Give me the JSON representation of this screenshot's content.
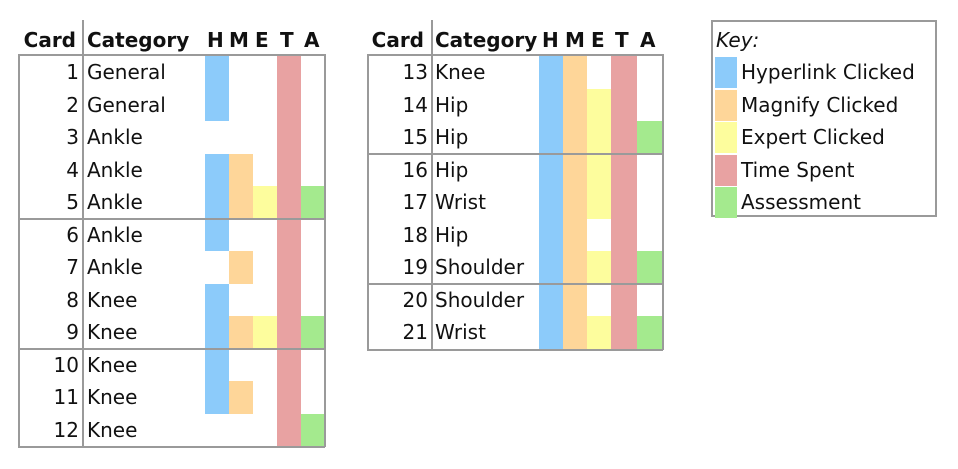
{
  "headers": {
    "card": "Card",
    "category": "Category",
    "h": "H",
    "m": "M",
    "e": "E",
    "t": "T",
    "a": "A"
  },
  "colors": {
    "hyperlink": "#8ccbfa",
    "magnify": "#fed699",
    "expert": "#fdfd9d",
    "time": "#e8a2a2",
    "assessment": "#a4ea8e"
  },
  "tables": [
    {
      "groups": [
        [
          {
            "card": "1",
            "category": "General",
            "h": 1,
            "m": 0,
            "e": 0,
            "t": 1,
            "a": 0
          },
          {
            "card": "2",
            "category": "General",
            "h": 1,
            "m": 0,
            "e": 0,
            "t": 1,
            "a": 0
          },
          {
            "card": "3",
            "category": "Ankle",
            "h": 0,
            "m": 0,
            "e": 0,
            "t": 1,
            "a": 0
          },
          {
            "card": "4",
            "category": "Ankle",
            "h": 1,
            "m": 1,
            "e": 0,
            "t": 1,
            "a": 0
          },
          {
            "card": "5",
            "category": "Ankle",
            "h": 1,
            "m": 1,
            "e": 1,
            "t": 1,
            "a": 1
          }
        ],
        [
          {
            "card": "6",
            "category": "Ankle",
            "h": 1,
            "m": 0,
            "e": 0,
            "t": 1,
            "a": 0
          },
          {
            "card": "7",
            "category": "Ankle",
            "h": 0,
            "m": 1,
            "e": 0,
            "t": 1,
            "a": 0
          },
          {
            "card": "8",
            "category": "Knee",
            "h": 1,
            "m": 0,
            "e": 0,
            "t": 1,
            "a": 0
          },
          {
            "card": "9",
            "category": "Knee",
            "h": 1,
            "m": 1,
            "e": 1,
            "t": 1,
            "a": 1
          }
        ],
        [
          {
            "card": "10",
            "category": "Knee",
            "h": 1,
            "m": 0,
            "e": 0,
            "t": 1,
            "a": 0
          },
          {
            "card": "11",
            "category": "Knee",
            "h": 1,
            "m": 1,
            "e": 0,
            "t": 1,
            "a": 0
          },
          {
            "card": "12",
            "category": "Knee",
            "h": 0,
            "m": 0,
            "e": 0,
            "t": 1,
            "a": 1
          }
        ]
      ]
    },
    {
      "groups": [
        [
          {
            "card": "13",
            "category": "Knee",
            "h": 1,
            "m": 1,
            "e": 0,
            "t": 1,
            "a": 0
          },
          {
            "card": "14",
            "category": "Hip",
            "h": 1,
            "m": 1,
            "e": 1,
            "t": 1,
            "a": 0
          },
          {
            "card": "15",
            "category": "Hip",
            "h": 1,
            "m": 1,
            "e": 1,
            "t": 1,
            "a": 1
          }
        ],
        [
          {
            "card": "16",
            "category": "Hip",
            "h": 1,
            "m": 1,
            "e": 1,
            "t": 1,
            "a": 0
          },
          {
            "card": "17",
            "category": "Wrist",
            "h": 1,
            "m": 1,
            "e": 1,
            "t": 1,
            "a": 0
          },
          {
            "card": "18",
            "category": "Hip",
            "h": 1,
            "m": 1,
            "e": 0,
            "t": 1,
            "a": 0
          },
          {
            "card": "19",
            "category": "Shoulder",
            "h": 1,
            "m": 1,
            "e": 1,
            "t": 1,
            "a": 1
          }
        ],
        [
          {
            "card": "20",
            "category": "Shoulder",
            "h": 1,
            "m": 1,
            "e": 0,
            "t": 1,
            "a": 0
          },
          {
            "card": "21",
            "category": "Wrist",
            "h": 1,
            "m": 1,
            "e": 1,
            "t": 1,
            "a": 1
          }
        ]
      ]
    }
  ],
  "key": {
    "title": "Key:",
    "items": [
      {
        "label": "Hyperlink Clicked",
        "color": "#8ccbfa"
      },
      {
        "label": "Magnify Clicked",
        "color": "#fed699"
      },
      {
        "label": "Expert Clicked",
        "color": "#fdfd9d"
      },
      {
        "label": "Time Spent",
        "color": "#e8a2a2"
      },
      {
        "label": "Assessment",
        "color": "#a4ea8e"
      }
    ]
  }
}
